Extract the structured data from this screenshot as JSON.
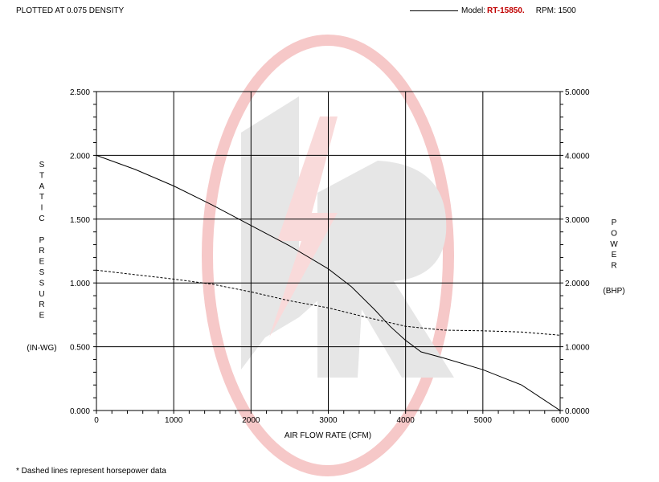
{
  "header": {
    "density_text": "PLOTTED AT 0.075 DENSITY",
    "model_label": "Model:",
    "model_value": "RT-15850.",
    "rpm_text": "RPM: 1500"
  },
  "footnote": "* Dashed lines represent horsepower data",
  "colors": {
    "grid": "#000000",
    "model_value": "#c00000",
    "watermark": "#f6c8c8",
    "watermark_gray": "#e6e6e6"
  },
  "watermark": {
    "icon": "company-logo-watermark"
  },
  "chart_data": {
    "type": "line",
    "xlabel": "AIR FLOW RATE (CFM)",
    "ylabel_left": [
      "S",
      "T",
      "A",
      "T",
      "I",
      "C",
      "",
      "P",
      "R",
      "E",
      "S",
      "S",
      "U",
      "R",
      "E"
    ],
    "ylabel_left_unit": "(IN-WG)",
    "ylabel_right": [
      "P",
      "O",
      "W",
      "E",
      "R"
    ],
    "ylabel_right_unit": "(BHP)",
    "xlim": [
      0,
      6000
    ],
    "ylim_left": [
      0,
      2.5
    ],
    "ylim_right": [
      0,
      5
    ],
    "x_ticks": [
      "0",
      "1000",
      "2000",
      "3000",
      "4000",
      "5000",
      "6000"
    ],
    "y_ticks_left": [
      "0.000",
      "0.500",
      "1.000",
      "1.500",
      "2.000",
      "2.500"
    ],
    "y_ticks_right": [
      "0.0000",
      "1.0000",
      "2.0000",
      "3.0000",
      "4.0000",
      "5.0000"
    ],
    "grid": true,
    "series": [
      {
        "axis": "left",
        "style": "solid",
        "x": [
          0,
          500,
          1000,
          1500,
          2000,
          2500,
          3000,
          3300,
          3600,
          3800,
          4000,
          4200,
          4500,
          5000,
          5500,
          6000
        ],
        "y": [
          2.0,
          1.89,
          1.76,
          1.61,
          1.45,
          1.29,
          1.11,
          0.97,
          0.79,
          0.66,
          0.55,
          0.46,
          0.41,
          0.32,
          0.2,
          0.0
        ]
      },
      {
        "axis": "right",
        "style": "dashed",
        "x": [
          0,
          500,
          1000,
          1500,
          2000,
          2500,
          3000,
          3500,
          4000,
          4500,
          5000,
          5500,
          6000
        ],
        "y": [
          2.2,
          2.13,
          2.06,
          1.98,
          1.86,
          1.72,
          1.61,
          1.46,
          1.32,
          1.26,
          1.25,
          1.23,
          1.18
        ]
      }
    ]
  }
}
